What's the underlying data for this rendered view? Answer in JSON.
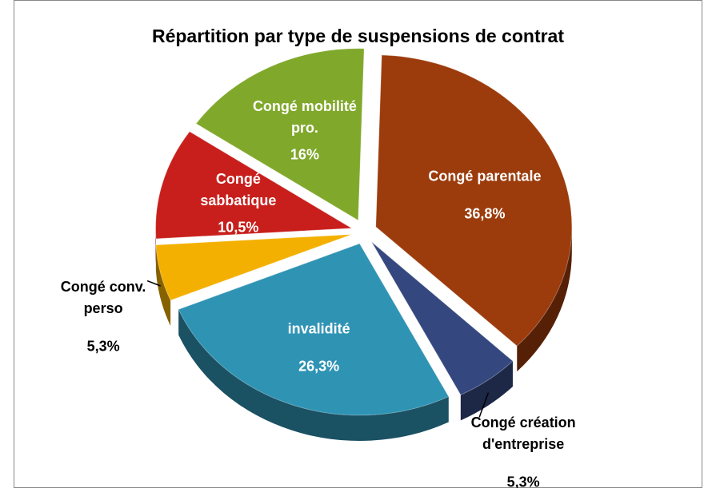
{
  "chart_data": {
    "type": "pie",
    "title": "Répartition par type de suspensions de contrat",
    "categories": [
      "Congé parentale",
      "Congé création d'entreprise",
      "invalidité",
      "Congé conv. perso",
      "Congé sabbatique",
      "Congé mobilité pro."
    ],
    "values": [
      36.8,
      5.3,
      26.3,
      5.3,
      10.5,
      16
    ],
    "value_labels": [
      "36,8%",
      "5,3%",
      "26,3%",
      "5,3%",
      "10,5%",
      "16%"
    ],
    "colors": [
      "#9c3b0c",
      "#34477f",
      "#2f93b4",
      "#f4b000",
      "#c81f1c",
      "#80a82b"
    ]
  }
}
